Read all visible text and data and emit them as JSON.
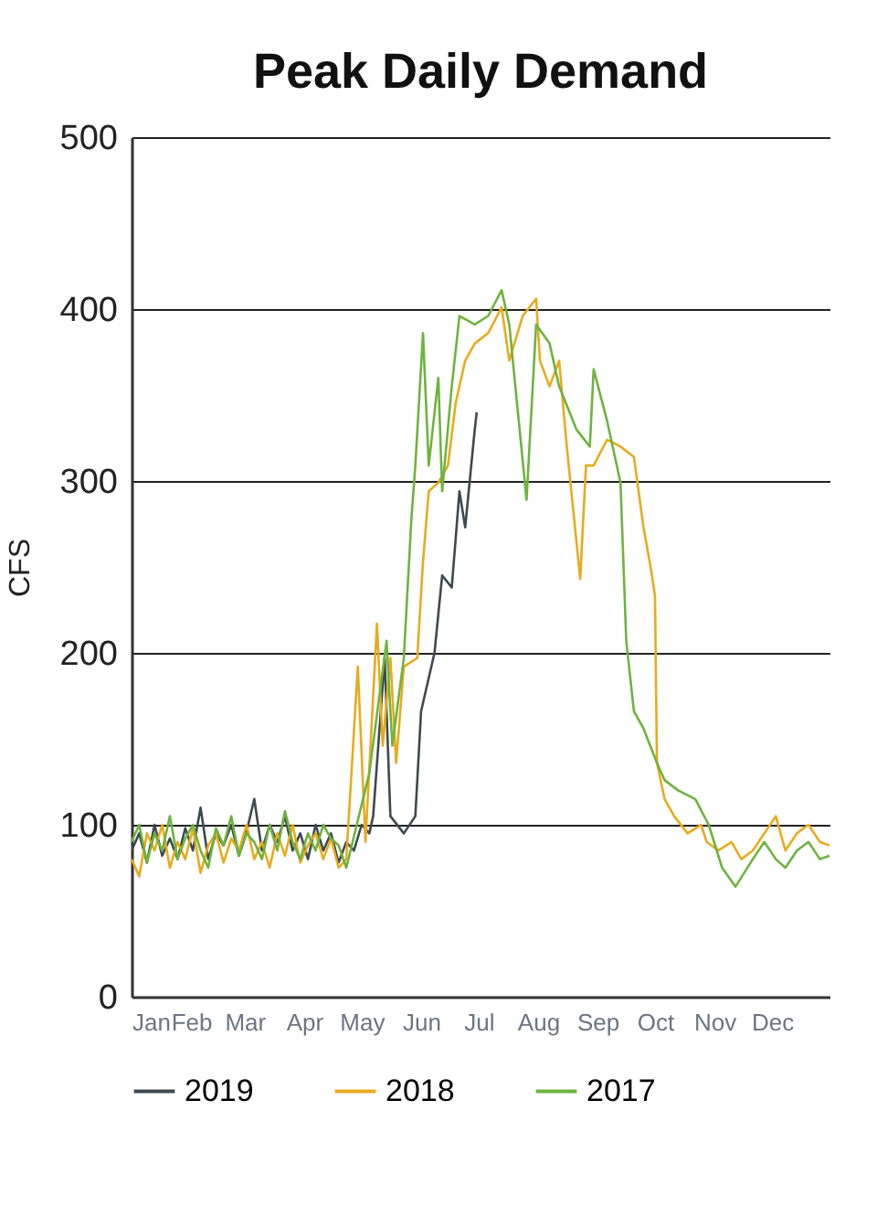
{
  "chart_data": {
    "type": "line",
    "title": "Peak Daily Demand",
    "ylabel": "CFS",
    "xlim": [
      "--01-01",
      "--12-31"
    ],
    "ylim": [
      0,
      500
    ],
    "yticks": [
      0,
      100,
      200,
      300,
      400,
      500
    ],
    "xticks": [
      {
        "value": "--01-01",
        "label": "Jan"
      },
      {
        "value": "--02-01",
        "label": "Feb"
      },
      {
        "value": "--03-01",
        "label": "Mar"
      },
      {
        "value": "--04-01",
        "label": "Apr"
      },
      {
        "value": "--05-01",
        "label": "May"
      },
      {
        "value": "--06-01",
        "label": "Jun"
      },
      {
        "value": "--07-01",
        "label": "Jul"
      },
      {
        "value": "--08-01",
        "label": "Aug"
      },
      {
        "value": "--09-01",
        "label": "Sep"
      },
      {
        "value": "--10-01",
        "label": "Oct"
      },
      {
        "value": "--11-01",
        "label": "Nov"
      },
      {
        "value": "--12-01",
        "label": "Dec"
      }
    ],
    "grid": "y",
    "legend": "bottom",
    "series": [
      {
        "name": "2019",
        "color": "#3d4a4f",
        "x": [
          "--01-01",
          "--01-05",
          "--01-09",
          "--01-13",
          "--01-17",
          "--01-21",
          "--01-25",
          "--01-29",
          "--02-02",
          "--02-06",
          "--02-10",
          "--02-14",
          "--02-18",
          "--02-22",
          "--02-26",
          "--03-02",
          "--03-06",
          "--03-10",
          "--03-14",
          "--03-18",
          "--03-22",
          "--03-26",
          "--03-30",
          "--04-03",
          "--04-07",
          "--04-11",
          "--04-15",
          "--04-19",
          "--04-23",
          "--04-27",
          "--05-01",
          "--05-05",
          "--05-07",
          "--05-11",
          "--05-13",
          "--05-16",
          "--05-23",
          "--05-29",
          "--06-01",
          "--06-08",
          "--06-12",
          "--06-17",
          "--06-21",
          "--06-24",
          "--06-29",
          "--06-30"
        ],
        "values": [
          85,
          95,
          78,
          100,
          82,
          92,
          80,
          98,
          85,
          110,
          80,
          95,
          88,
          100,
          82,
          96,
          115,
          85,
          100,
          90,
          105,
          85,
          95,
          80,
          100,
          85,
          95,
          78,
          90,
          85,
          100,
          95,
          105,
          166,
          197,
          105,
          95,
          105,
          166,
          200,
          245,
          238,
          294,
          273,
          330,
          340
        ]
      },
      {
        "name": "2018",
        "color": "#e8ab1e",
        "x": [
          "--01-01",
          "--01-05",
          "--01-09",
          "--01-13",
          "--01-17",
          "--01-21",
          "--01-25",
          "--01-29",
          "--02-02",
          "--02-06",
          "--02-10",
          "--02-14",
          "--02-18",
          "--02-22",
          "--02-26",
          "--03-02",
          "--03-06",
          "--03-10",
          "--03-14",
          "--03-18",
          "--03-22",
          "--03-26",
          "--03-30",
          "--04-03",
          "--04-07",
          "--04-11",
          "--04-15",
          "--04-19",
          "--04-23",
          "--04-29",
          "--05-03",
          "--05-09",
          "--05-12",
          "--05-16",
          "--05-19",
          "--05-23",
          "--05-30",
          "--06-02",
          "--06-05",
          "--06-10",
          "--06-15",
          "--06-19",
          "--06-24",
          "--06-29",
          "--07-06",
          "--07-13",
          "--07-17",
          "--07-24",
          "--07-31",
          "--08-02",
          "--08-07",
          "--08-12",
          "--08-16",
          "--08-23",
          "--08-26",
          "--08-30",
          "--09-06",
          "--09-13",
          "--09-20",
          "--09-25",
          "--09-29",
          "--10-01",
          "--10-02",
          "--10-06",
          "--10-11",
          "--10-18",
          "--10-25",
          "--10-28",
          "--11-03",
          "--11-10",
          "--11-15",
          "--11-21",
          "--11-27",
          "--12-03",
          "--12-08",
          "--12-14",
          "--12-20",
          "--12-26",
          "--12-31"
        ],
        "values": [
          80,
          70,
          95,
          85,
          100,
          75,
          90,
          80,
          98,
          72,
          88,
          95,
          78,
          92,
          85,
          100,
          80,
          90,
          75,
          95,
          82,
          100,
          78,
          88,
          95,
          80,
          92,
          75,
          80,
          192,
          90,
          217,
          146,
          197,
          136,
          192,
          197,
          253,
          294,
          299,
          309,
          345,
          370,
          380,
          386,
          401,
          370,
          396,
          406,
          370,
          355,
          370,
          320,
          243,
          309,
          309,
          324,
          320,
          314,
          273,
          248,
          233,
          136,
          115,
          105,
          95,
          100,
          90,
          85,
          90,
          80,
          85,
          95,
          105,
          85,
          95,
          100,
          90,
          88
        ]
      },
      {
        "name": "2017",
        "color": "#6fb33f",
        "x": [
          "--01-01",
          "--01-05",
          "--01-09",
          "--01-13",
          "--01-17",
          "--01-21",
          "--01-25",
          "--01-29",
          "--02-02",
          "--02-06",
          "--02-10",
          "--02-14",
          "--02-18",
          "--02-22",
          "--02-26",
          "--03-02",
          "--03-06",
          "--03-10",
          "--03-14",
          "--03-18",
          "--03-22",
          "--03-26",
          "--03-30",
          "--04-03",
          "--04-07",
          "--04-11",
          "--04-15",
          "--04-19",
          "--04-23",
          "--05-05",
          "--05-14",
          "--05-17",
          "--05-23",
          "--05-27",
          "--05-29",
          "--06-02",
          "--06-05",
          "--06-10",
          "--06-12",
          "--06-17",
          "--06-21",
          "--06-29",
          "--07-06",
          "--07-13",
          "--07-17",
          "--07-26",
          "--07-31",
          "--08-07",
          "--08-12",
          "--08-21",
          "--08-28",
          "--08-30",
          "--09-06",
          "--09-13",
          "--09-15",
          "--09-16",
          "--09-20",
          "--09-25",
          "--10-02",
          "--10-06",
          "--10-13",
          "--10-22",
          "--10-29",
          "--11-05",
          "--11-12",
          "--11-21",
          "--11-27",
          "--12-03",
          "--12-08",
          "--12-14",
          "--12-20",
          "--12-26",
          "--12-31"
        ],
        "values": [
          90,
          100,
          78,
          95,
          85,
          105,
          80,
          92,
          100,
          85,
          75,
          98,
          88,
          105,
          82,
          95,
          90,
          80,
          100,
          85,
          108,
          90,
          80,
          95,
          85,
          100,
          92,
          88,
          75,
          130,
          207,
          146,
          197,
          279,
          309,
          386,
          309,
          360,
          294,
          355,
          396,
          391,
          396,
          411,
          391,
          289,
          391,
          380,
          355,
          330,
          320,
          365,
          335,
          299,
          238,
          207,
          166,
          156,
          136,
          126,
          120,
          115,
          100,
          75,
          64,
          80,
          90,
          80,
          75,
          85,
          90,
          80,
          82
        ]
      }
    ]
  }
}
